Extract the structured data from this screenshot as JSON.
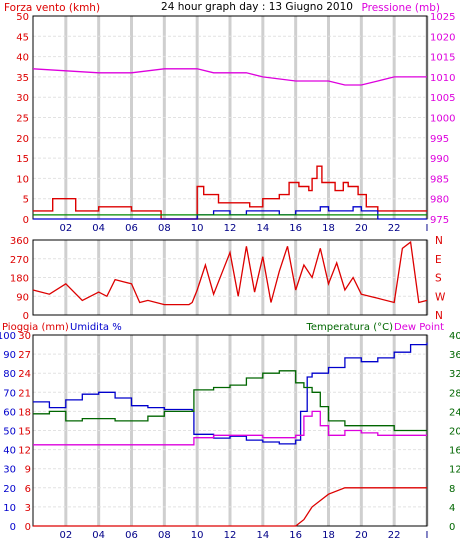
{
  "chart_data": [
    {
      "type": "line",
      "title": "24 hour graph day : 13 Giugno 2010",
      "left_axis_label": "Forza vento (kmh)",
      "right_axis_label": "Pressione (mb)",
      "x_ticks": [
        "02",
        "04",
        "06",
        "08",
        "10",
        "12",
        "14",
        "16",
        "18",
        "20",
        "22",
        "I"
      ],
      "left_ticks": [
        "0",
        "5",
        "10",
        "15",
        "20",
        "25",
        "30",
        "35",
        "40",
        "45",
        "50"
      ],
      "right_ticks": [
        "975",
        "980",
        "985",
        "990",
        "995",
        "1000",
        "1005",
        "1010",
        "1015",
        "1020",
        "1025"
      ],
      "ylim_left": [
        0,
        50
      ],
      "ylim_right": [
        975,
        1025
      ],
      "grid": true,
      "colors": {
        "wind": "#dd0000",
        "wind_avg": "#0000cc",
        "wind_calm": "#008800",
        "pressure": "#dd00dd"
      },
      "series": [
        {
          "key": "wind_gust",
          "axis": "left",
          "values": [
            [
              0,
              2
            ],
            [
              0.7,
              2
            ],
            [
              1.2,
              5
            ],
            [
              2.3,
              5
            ],
            [
              2.6,
              2
            ],
            [
              3.5,
              2
            ],
            [
              4,
              3
            ],
            [
              5.5,
              3
            ],
            [
              6,
              2
            ],
            [
              7.2,
              2
            ],
            [
              7.8,
              0
            ],
            [
              9.7,
              0
            ],
            [
              10,
              8
            ],
            [
              10.4,
              6
            ],
            [
              11.3,
              4
            ],
            [
              12,
              4
            ],
            [
              13.2,
              3
            ],
            [
              14,
              5
            ],
            [
              15,
              6
            ],
            [
              15.6,
              9
            ],
            [
              16.2,
              8
            ],
            [
              16.8,
              7
            ],
            [
              17,
              10
            ],
            [
              17.3,
              13
            ],
            [
              17.6,
              9
            ],
            [
              18.4,
              7
            ],
            [
              18.9,
              9
            ],
            [
              19.2,
              8
            ],
            [
              19.8,
              6
            ],
            [
              20.3,
              3
            ],
            [
              21,
              2
            ],
            [
              22,
              2
            ],
            [
              23,
              2
            ],
            [
              24,
              2
            ]
          ]
        },
        {
          "key": "wind_avg",
          "axis": "left",
          "values": [
            [
              0,
              0
            ],
            [
              9.7,
              0
            ],
            [
              10,
              1
            ],
            [
              11,
              2
            ],
            [
              12,
              1
            ],
            [
              13,
              2
            ],
            [
              14,
              2
            ],
            [
              15,
              1
            ],
            [
              16,
              2
            ],
            [
              17,
              2
            ],
            [
              17.5,
              3
            ],
            [
              18,
              2
            ],
            [
              19,
              2
            ],
            [
              19.5,
              3
            ],
            [
              20,
              2
            ],
            [
              21,
              0
            ],
            [
              24,
              0
            ]
          ]
        },
        {
          "key": "wind_calm",
          "axis": "left",
          "values": [
            [
              0,
              1
            ],
            [
              24,
              1
            ]
          ]
        },
        {
          "key": "pressure",
          "axis": "right",
          "values": [
            [
              0,
              1012
            ],
            [
              2,
              1011.5
            ],
            [
              4,
              1011
            ],
            [
              6,
              1011
            ],
            [
              8,
              1012
            ],
            [
              10,
              1012
            ],
            [
              11,
              1011
            ],
            [
              12,
              1011
            ],
            [
              13,
              1011
            ],
            [
              14,
              1010
            ],
            [
              16,
              1009
            ],
            [
              17,
              1009
            ],
            [
              18,
              1009
            ],
            [
              19,
              1008
            ],
            [
              20,
              1008
            ],
            [
              21,
              1009
            ],
            [
              22,
              1010
            ],
            [
              23,
              1010
            ],
            [
              24,
              1010
            ]
          ]
        }
      ]
    },
    {
      "type": "scatter",
      "left_ticks": [
        "0",
        "90",
        "180",
        "270",
        "360"
      ],
      "right_ticks": [
        "N",
        "W",
        "S",
        "E",
        "N"
      ],
      "ylim": [
        0,
        360
      ],
      "color": "#dd0000",
      "series": [
        {
          "key": "wind_direction",
          "values": [
            [
              0,
              120
            ],
            [
              1,
              100
            ],
            [
              2,
              150
            ],
            [
              3,
              70
            ],
            [
              4,
              110
            ],
            [
              4.5,
              90
            ],
            [
              5,
              170
            ],
            [
              5.5,
              160
            ],
            [
              6,
              150
            ],
            [
              6.5,
              60
            ],
            [
              7,
              70
            ],
            [
              8,
              50
            ],
            [
              9.5,
              50
            ],
            [
              9.7,
              60
            ],
            [
              10,
              120
            ],
            [
              10.5,
              240
            ],
            [
              11,
              100
            ],
            [
              11.5,
              200
            ],
            [
              12,
              300
            ],
            [
              12.5,
              90
            ],
            [
              13,
              330
            ],
            [
              13.5,
              110
            ],
            [
              14,
              280
            ],
            [
              14.5,
              60
            ],
            [
              15,
              210
            ],
            [
              15.5,
              330
            ],
            [
              16,
              120
            ],
            [
              16.5,
              240
            ],
            [
              17,
              180
            ],
            [
              17.5,
              320
            ],
            [
              18,
              150
            ],
            [
              18.5,
              250
            ],
            [
              19,
              120
            ],
            [
              19.5,
              180
            ],
            [
              20,
              100
            ],
            [
              20.5,
              90
            ],
            [
              21,
              80
            ],
            [
              22,
              60
            ],
            [
              22.5,
              320
            ],
            [
              23,
              350
            ],
            [
              23.5,
              60
            ],
            [
              24,
              70
            ]
          ]
        }
      ]
    },
    {
      "type": "line",
      "left_axis_label_a": "Pioggia (mm)",
      "left_axis_label_b": "Umidita %",
      "right_axis_label_a": "Temperatura (°C)",
      "right_axis_label_b": "Dew Point",
      "x_ticks": [
        "02",
        "04",
        "06",
        "08",
        "10",
        "12",
        "14",
        "16",
        "18",
        "20",
        "22",
        "I"
      ],
      "humidity_ticks": [
        "0",
        "10",
        "20",
        "30",
        "40",
        "50",
        "60",
        "70",
        "80",
        "90",
        "100"
      ],
      "rain_ticks": [
        "0",
        "3",
        "6",
        "9",
        "12",
        "15",
        "18",
        "21",
        "24",
        "27",
        "30"
      ],
      "temperature_ticks": [
        "0",
        "4",
        "8",
        "12",
        "16",
        "20",
        "24",
        "28",
        "32",
        "36",
        "40"
      ],
      "ylim_humidity": [
        0,
        100
      ],
      "ylim_rain": [
        0,
        30
      ],
      "ylim_temperature": [
        0,
        40
      ],
      "grid": true,
      "colors": {
        "humidity": "#0000cc",
        "temperature": "#006600",
        "dew_point": "#dd00dd",
        "rain": "#dd0000"
      },
      "series": [
        {
          "key": "humidity",
          "axis": "humidity",
          "values": [
            [
              0,
              65
            ],
            [
              1,
              62
            ],
            [
              2,
              66
            ],
            [
              3,
              69
            ],
            [
              4,
              70
            ],
            [
              5,
              67
            ],
            [
              6,
              63
            ],
            [
              7,
              62
            ],
            [
              8,
              61
            ],
            [
              9.7,
              60
            ],
            [
              9.8,
              48
            ],
            [
              11,
              46
            ],
            [
              12,
              47
            ],
            [
              13,
              45
            ],
            [
              14,
              44
            ],
            [
              15,
              43
            ],
            [
              16,
              45
            ],
            [
              16.3,
              60
            ],
            [
              16.7,
              78
            ],
            [
              17,
              80
            ],
            [
              18,
              83
            ],
            [
              19,
              88
            ],
            [
              20,
              86
            ],
            [
              21,
              88
            ],
            [
              22,
              91
            ],
            [
              23,
              95
            ],
            [
              24,
              96
            ]
          ]
        },
        {
          "key": "temperature",
          "axis": "temperature",
          "values": [
            [
              0,
              23.5
            ],
            [
              1,
              24
            ],
            [
              2,
              22
            ],
            [
              3,
              22.5
            ],
            [
              4,
              22.5
            ],
            [
              5,
              22
            ],
            [
              6,
              22
            ],
            [
              7,
              23
            ],
            [
              8,
              24
            ],
            [
              9.7,
              24
            ],
            [
              9.8,
              28.5
            ],
            [
              11,
              29
            ],
            [
              12,
              29.5
            ],
            [
              13,
              31
            ],
            [
              14,
              32
            ],
            [
              15,
              32.5
            ],
            [
              16,
              30
            ],
            [
              16.5,
              29
            ],
            [
              17,
              28
            ],
            [
              17.5,
              25
            ],
            [
              18,
              22
            ],
            [
              19,
              21
            ],
            [
              20,
              21
            ],
            [
              21,
              21
            ],
            [
              22,
              20
            ],
            [
              23,
              20
            ],
            [
              24,
              20
            ]
          ]
        },
        {
          "key": "dew_point",
          "axis": "temperature",
          "values": [
            [
              0,
              17
            ],
            [
              2,
              17
            ],
            [
              4,
              17
            ],
            [
              6,
              17
            ],
            [
              8,
              17
            ],
            [
              9.7,
              17
            ],
            [
              9.8,
              18.5
            ],
            [
              11,
              19
            ],
            [
              12,
              19
            ],
            [
              13,
              19
            ],
            [
              14,
              18.5
            ],
            [
              15,
              18.5
            ],
            [
              16,
              19
            ],
            [
              16.5,
              23
            ],
            [
              17,
              24
            ],
            [
              17.5,
              21
            ],
            [
              18,
              19
            ],
            [
              19,
              20
            ],
            [
              20,
              19.5
            ],
            [
              21,
              19
            ],
            [
              22,
              19
            ],
            [
              23,
              19
            ],
            [
              24,
              19
            ]
          ]
        },
        {
          "key": "rain",
          "axis": "rain",
          "values": [
            [
              0,
              0
            ],
            [
              16,
              0
            ],
            [
              16.5,
              1
            ],
            [
              17,
              3
            ],
            [
              18,
              5
            ],
            [
              19,
              6
            ],
            [
              20,
              6
            ],
            [
              21,
              6
            ],
            [
              22,
              6
            ],
            [
              23,
              6
            ],
            [
              24,
              6
            ]
          ]
        }
      ]
    }
  ]
}
